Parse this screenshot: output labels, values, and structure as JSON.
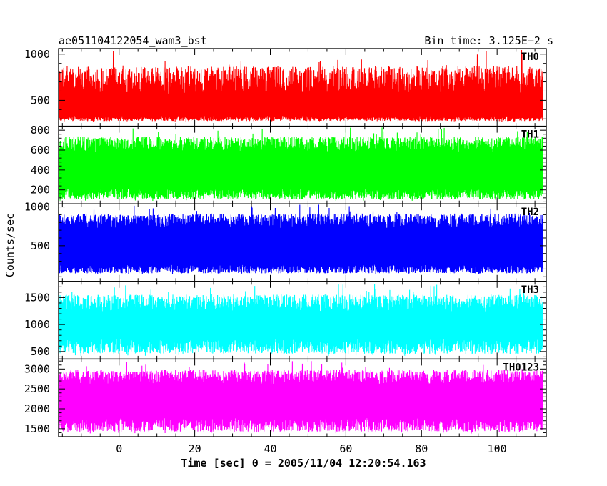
{
  "chart_data": {
    "type": "line",
    "title_left": "ae051104122054_wam3_bst",
    "title_right": "Bin time: 3.125E−2 s",
    "xlabel": "Time [sec] 0 = 2005/11/04 12:20:54.163",
    "ylabel": "Counts/sec",
    "xlim": [
      -16,
      113
    ],
    "data_x_range": [
      -16,
      112
    ],
    "x_ticks": [
      0,
      20,
      40,
      60,
      80,
      100
    ],
    "bin_time": 0.03125,
    "panels": [
      {
        "name": "TH0",
        "color": "#ff0000",
        "ylim": [
          220,
          1060
        ],
        "y_ticks": [
          500,
          1000
        ],
        "base_range": [
          300,
          720
        ],
        "low": 270,
        "peak": 1050
      },
      {
        "name": "TH1",
        "color": "#00ff00",
        "ylim": [
          60,
          840
        ],
        "y_ticks": [
          200,
          400,
          600,
          800
        ],
        "base_range": [
          160,
          660
        ],
        "low": 90,
        "peak": 830
      },
      {
        "name": "TH2",
        "color": "#0000ff",
        "ylim": [
          40,
          1040
        ],
        "y_ticks": [
          500,
          1000
        ],
        "base_range": [
          200,
          820
        ],
        "low": 130,
        "peak": 1030
      },
      {
        "name": "TH3",
        "color": "#00ffff",
        "ylim": [
          360,
          1800
        ],
        "y_ticks": [
          500,
          1000,
          1500
        ],
        "base_range": [
          600,
          1400
        ],
        "low": 420,
        "peak": 1750
      },
      {
        "name": "TH0123",
        "color": "#ff00ff",
        "ylim": [
          1300,
          3250
        ],
        "y_ticks": [
          1500,
          2000,
          2500,
          3000
        ],
        "base_range": [
          1600,
          2800
        ],
        "low": 1380,
        "peak": 3200
      }
    ]
  }
}
